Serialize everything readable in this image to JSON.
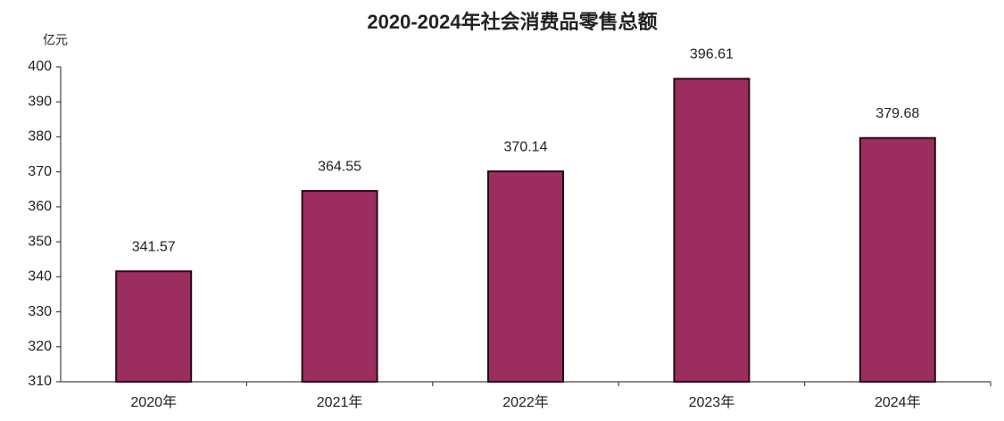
{
  "chart_data": {
    "type": "bar",
    "title": "2020-2024年社会消费品零售总额",
    "y_label": "亿元",
    "categories": [
      "2020年",
      "2021年",
      "2022年",
      "2023年",
      "2024年"
    ],
    "values": [
      341.57,
      364.55,
      370.14,
      396.61,
      379.68
    ],
    "color": "#9b2d5f",
    "ylim": [
      310,
      400
    ],
    "yticks": [
      310,
      320,
      330,
      340,
      350,
      360,
      370,
      380,
      390,
      400
    ],
    "grid": false
  }
}
